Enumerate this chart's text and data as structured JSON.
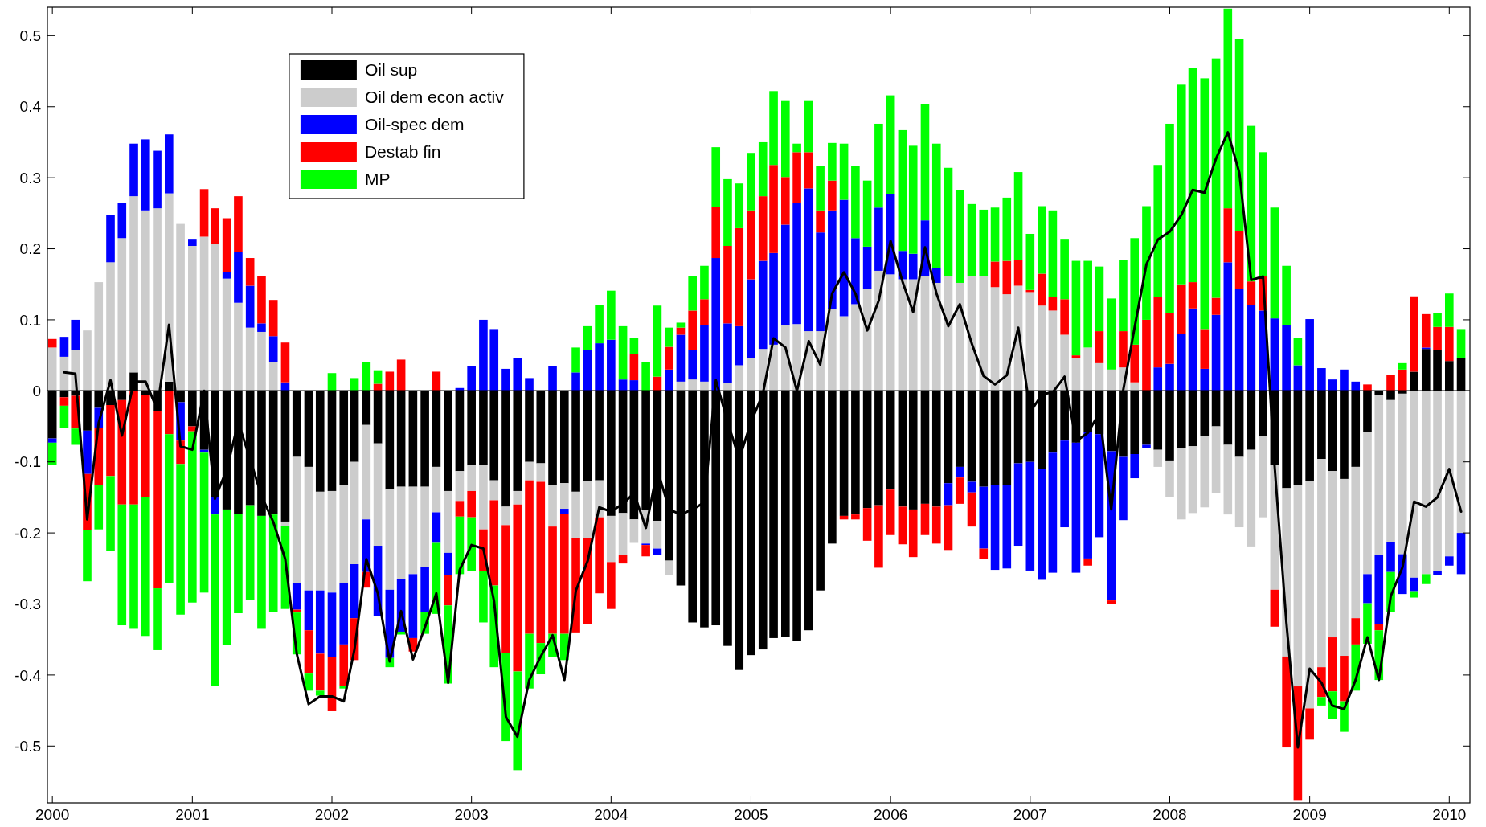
{
  "chart_data": {
    "type": "bar",
    "stacked": true,
    "x": [
      "2000-01",
      "2000-02",
      "2000-03",
      "2000-04",
      "2000-05",
      "2000-06",
      "2000-07",
      "2000-08",
      "2000-09",
      "2000-10",
      "2000-11",
      "2000-12",
      "2001-01",
      "2001-02",
      "2001-03",
      "2001-04",
      "2001-05",
      "2001-06",
      "2001-07",
      "2001-08",
      "2001-09",
      "2001-10",
      "2001-11",
      "2001-12",
      "2002-01",
      "2002-02",
      "2002-03",
      "2002-04",
      "2002-05",
      "2002-06",
      "2002-07",
      "2002-08",
      "2002-09",
      "2002-10",
      "2002-11",
      "2002-12",
      "2003-01",
      "2003-02",
      "2003-03",
      "2003-04",
      "2003-05",
      "2003-06",
      "2003-07",
      "2003-08",
      "2003-09",
      "2003-10",
      "2003-11",
      "2003-12",
      "2004-01",
      "2004-02",
      "2004-03",
      "2004-04",
      "2004-05",
      "2004-06",
      "2004-07",
      "2004-08",
      "2004-09",
      "2004-10",
      "2004-11",
      "2004-12",
      "2005-01",
      "2005-02",
      "2005-03",
      "2005-04",
      "2005-05",
      "2005-06",
      "2005-07",
      "2005-08",
      "2005-09",
      "2005-10",
      "2005-11",
      "2005-12",
      "2006-01",
      "2006-02",
      "2006-03",
      "2006-04",
      "2006-05",
      "2006-06",
      "2006-07",
      "2006-08",
      "2006-09",
      "2006-10",
      "2006-11",
      "2006-12",
      "2007-01",
      "2007-02",
      "2007-03",
      "2007-04",
      "2007-05",
      "2007-06",
      "2007-07",
      "2007-08",
      "2007-09",
      "2007-10",
      "2007-11",
      "2007-12",
      "2008-01",
      "2008-02",
      "2008-03",
      "2008-04",
      "2008-05",
      "2008-06",
      "2008-07",
      "2008-08",
      "2008-09",
      "2008-10",
      "2008-11",
      "2008-12",
      "2009-01",
      "2009-02",
      "2009-03",
      "2009-04",
      "2009-05",
      "2009-06",
      "2009-07",
      "2009-08",
      "2009-09",
      "2009-10",
      "2009-11",
      "2009-12",
      "2010-01",
      "2010-02"
    ],
    "xlim": [
      "1999-12-19",
      "2010-02-24"
    ],
    "xticks": [
      "2000",
      "2001",
      "2002",
      "2003",
      "2004",
      "2005",
      "2006",
      "2007",
      "2008",
      "2009",
      "2010"
    ],
    "ylim": [
      -0.58,
      0.54
    ],
    "yticks": [
      -0.5,
      -0.4,
      -0.3,
      -0.2,
      -0.1,
      0,
      0.1,
      0.2,
      0.3,
      0.4,
      0.5
    ],
    "grid": false,
    "legend": "top left",
    "ref_lines": [
      {
        "axis": "y",
        "value": 0,
        "color": "#000000"
      }
    ],
    "series": [
      {
        "name": "Oil sup",
        "color": "#000000",
        "values": [
          -0.067,
          -0.009,
          -0.007,
          -0.056,
          -0.024,
          -0.02,
          -0.013,
          0.026,
          -0.006,
          -0.028,
          0.013,
          -0.016,
          -0.05,
          -0.083,
          -0.15,
          -0.167,
          -0.173,
          -0.161,
          -0.176,
          -0.174,
          -0.184,
          -0.093,
          -0.107,
          -0.142,
          -0.141,
          -0.133,
          -0.1,
          -0.048,
          -0.074,
          -0.139,
          -0.135,
          -0.135,
          -0.135,
          -0.107,
          -0.141,
          -0.113,
          -0.105,
          -0.104,
          -0.126,
          -0.163,
          -0.141,
          -0.1,
          -0.102,
          -0.133,
          -0.13,
          -0.142,
          -0.127,
          -0.126,
          -0.176,
          -0.172,
          -0.181,
          -0.168,
          -0.183,
          -0.239,
          -0.274,
          -0.326,
          -0.333,
          -0.33,
          -0.359,
          -0.393,
          -0.372,
          -0.364,
          -0.348,
          -0.346,
          -0.352,
          -0.337,
          -0.281,
          -0.215,
          -0.176,
          -0.174,
          -0.165,
          -0.161,
          -0.139,
          -0.163,
          -0.167,
          -0.159,
          -0.163,
          -0.13,
          -0.107,
          -0.128,
          -0.135,
          -0.132,
          -0.132,
          -0.102,
          -0.1,
          -0.11,
          -0.087,
          -0.07,
          -0.073,
          -0.058,
          -0.061,
          -0.085,
          -0.093,
          -0.089,
          -0.076,
          -0.083,
          -0.098,
          -0.08,
          -0.078,
          -0.063,
          -0.05,
          -0.076,
          -0.093,
          -0.083,
          -0.063,
          -0.104,
          -0.137,
          -0.133,
          -0.127,
          -0.096,
          -0.113,
          -0.124,
          -0.107,
          -0.058,
          -0.006,
          -0.013,
          -0.004,
          0.027,
          0.059,
          0.057,
          0.042,
          0.046
        ]
      },
      {
        "name": "Oil dem econ activ",
        "color": "#cccccc",
        "values": [
          0.061,
          0.048,
          0.058,
          0.085,
          0.153,
          0.181,
          0.215,
          0.248,
          0.254,
          0.257,
          0.265,
          0.235,
          0.204,
          0.217,
          0.207,
          0.158,
          0.124,
          0.089,
          0.083,
          0.041,
          -0.006,
          -0.178,
          -0.174,
          -0.139,
          -0.143,
          -0.137,
          -0.144,
          -0.133,
          -0.144,
          -0.141,
          -0.13,
          -0.123,
          -0.113,
          -0.064,
          -0.087,
          -0.042,
          -0.036,
          -0.091,
          -0.028,
          -0.026,
          -0.019,
          -0.026,
          -0.026,
          -0.058,
          -0.036,
          -0.065,
          -0.08,
          -0.052,
          -0.065,
          -0.059,
          -0.033,
          -0.047,
          -0.039,
          -0.02,
          0.013,
          0.016,
          0.013,
          0,
          0.011,
          0.036,
          0.046,
          0.059,
          0.065,
          0.093,
          0.094,
          0.084,
          0.084,
          0.115,
          0.105,
          0.122,
          0.144,
          0.169,
          0.164,
          0.157,
          0.157,
          0.161,
          0.152,
          0.161,
          0.152,
          0.162,
          0.162,
          0.146,
          0.136,
          0.148,
          0.139,
          0.12,
          0.113,
          0.079,
          0.046,
          0.061,
          0.039,
          0.03,
          0.033,
          0.012,
          0,
          -0.024,
          -0.052,
          -0.101,
          -0.094,
          -0.101,
          -0.094,
          -0.098,
          -0.099,
          -0.136,
          -0.115,
          -0.176,
          -0.237,
          -0.283,
          -0.32,
          -0.293,
          -0.234,
          -0.249,
          -0.213,
          -0.2,
          -0.225,
          -0.2,
          -0.226,
          -0.263,
          -0.258,
          -0.254,
          -0.233,
          -0.2
        ]
      },
      {
        "name": "Oil-spec dem",
        "color": "#0000ff",
        "values": [
          -0.006,
          0.028,
          0.042,
          -0.061,
          -0.028,
          0.067,
          0.05,
          0.074,
          0.1,
          0.081,
          0.083,
          -0.054,
          0.01,
          -0.004,
          -0.024,
          0.009,
          0.072,
          0.059,
          0.012,
          0.036,
          0.012,
          -0.037,
          -0.056,
          -0.089,
          -0.091,
          -0.087,
          -0.076,
          -0.074,
          -0.099,
          -0.096,
          -0.074,
          -0.09,
          -0.063,
          -0.043,
          -0.031,
          0.004,
          0.035,
          0.1,
          0.087,
          0.031,
          0.046,
          0.018,
          0,
          0.035,
          -0.007,
          0.026,
          0.058,
          0.067,
          0.072,
          0.016,
          0.015,
          -0.002,
          -0.009,
          0.03,
          0.066,
          0.041,
          0.08,
          0.187,
          0.084,
          0.055,
          0.111,
          0.124,
          0.129,
          0.141,
          0.17,
          0.201,
          0.139,
          0.139,
          0.164,
          0.093,
          0.059,
          0.089,
          0.113,
          0.04,
          0.036,
          0.079,
          0.021,
          -0.031,
          -0.015,
          -0.015,
          -0.087,
          -0.12,
          -0.118,
          -0.116,
          -0.153,
          -0.156,
          -0.169,
          -0.122,
          -0.183,
          -0.178,
          -0.145,
          -0.21,
          -0.089,
          -0.034,
          -0.005,
          0.033,
          0.038,
          0.08,
          0.116,
          0.031,
          0.107,
          0.181,
          0.144,
          0.121,
          0.113,
          0.102,
          0.093,
          0.036,
          0.101,
          0.032,
          0.016,
          0.03,
          0.013,
          -0.041,
          -0.097,
          -0.042,
          -0.056,
          -0.019,
          0.002,
          -0.005,
          -0.013,
          -0.058
        ]
      },
      {
        "name": "Destab fin",
        "color": "#ff0000",
        "values": [
          0.012,
          -0.012,
          -0.046,
          -0.079,
          -0.08,
          -0.1,
          -0.147,
          -0.16,
          -0.144,
          -0.25,
          -0.061,
          -0.033,
          -0.007,
          0.067,
          0.05,
          0.076,
          0.078,
          0.039,
          0.067,
          0.051,
          0.056,
          -0.004,
          -0.061,
          -0.052,
          -0.076,
          -0.058,
          -0.059,
          -0.022,
          0.01,
          0.027,
          0.044,
          -0.019,
          0,
          0.027,
          -0.043,
          -0.022,
          -0.037,
          -0.059,
          -0.12,
          -0.18,
          -0.235,
          -0.216,
          -0.227,
          -0.151,
          -0.169,
          -0.133,
          -0.121,
          -0.107,
          -0.066,
          -0.012,
          0.037,
          -0.016,
          0.02,
          0.032,
          0.01,
          0.056,
          0.036,
          0.072,
          0.109,
          0.138,
          0.097,
          0.091,
          0.124,
          0.067,
          0.072,
          0.051,
          0.031,
          0.042,
          -0.005,
          -0.007,
          -0.046,
          -0.088,
          -0.064,
          -0.053,
          -0.067,
          -0.044,
          -0.052,
          -0.063,
          -0.037,
          -0.048,
          -0.015,
          0.036,
          0.047,
          0.036,
          0.003,
          0.045,
          0.019,
          0.05,
          0.004,
          -0.01,
          0.045,
          -0.005,
          0.051,
          0.053,
          0.1,
          0.099,
          0.072,
          0.07,
          0.037,
          0.056,
          0.024,
          0.076,
          0.081,
          0.033,
          0.049,
          -0.052,
          -0.128,
          -0.161,
          -0.044,
          -0.042,
          -0.076,
          -0.064,
          -0.037,
          0.009,
          -0.009,
          0.022,
          0.03,
          0.106,
          0.047,
          0.033,
          0.048,
          0
        ]
      },
      {
        "name": "MP",
        "color": "#00ff00",
        "values": [
          -0.031,
          -0.031,
          -0.023,
          -0.072,
          -0.063,
          -0.105,
          -0.17,
          -0.175,
          -0.195,
          -0.087,
          -0.209,
          -0.212,
          -0.241,
          -0.197,
          -0.241,
          -0.191,
          -0.14,
          -0.133,
          -0.159,
          -0.137,
          -0.117,
          -0.059,
          -0.024,
          -0.007,
          0.025,
          -0.004,
          0.018,
          0.041,
          0.019,
          -0.013,
          -0.004,
          null,
          -0.031,
          -0.1,
          -0.11,
          -0.081,
          -0.076,
          -0.072,
          -0.115,
          -0.124,
          -0.139,
          -0.077,
          -0.044,
          -0.033,
          -0.037,
          0.035,
          0.033,
          0.054,
          0.069,
          0.075,
          0.022,
          0.04,
          0.1,
          0.027,
          0.007,
          0.048,
          0.047,
          0.084,
          0.094,
          0.063,
          0.081,
          0.076,
          0.104,
          0.107,
          0.012,
          0.072,
          0.063,
          0.053,
          0.079,
          0.101,
          0.093,
          0.118,
          0.139,
          0.17,
          0.152,
          0.164,
          0.175,
          0.153,
          0.131,
          0.101,
          0.093,
          0.076,
          0.089,
          0.124,
          0.079,
          0.095,
          0.122,
          0.085,
          0.133,
          0.122,
          0.091,
          0.1,
          0.1,
          0.15,
          0.16,
          0.186,
          0.266,
          0.281,
          0.302,
          0.353,
          0.337,
          0.281,
          0.27,
          0.219,
          0.174,
          0.156,
          0.083,
          0.039,
          0,
          -0.012,
          -0.039,
          -0.043,
          -0.065,
          -0.057,
          -0.07,
          -0.056,
          0.009,
          -0.009,
          -0.014,
          0.019,
          0.047,
          0.041
        ]
      },
      {
        "type": "line",
        "color": "#000000",
        "values": [
          null,
          0.026,
          0.024,
          -0.181,
          -0.045,
          0.015,
          -0.063,
          0.013,
          0.013,
          -0.026,
          0.093,
          -0.078,
          -0.083,
          0,
          -0.152,
          -0.111,
          -0.044,
          -0.096,
          -0.148,
          -0.185,
          -0.237,
          -0.37,
          -0.441,
          -0.43,
          -0.43,
          -0.437,
          -0.364,
          -0.237,
          -0.285,
          -0.381,
          -0.31,
          -0.378,
          -0.333,
          -0.285,
          -0.411,
          -0.252,
          -0.217,
          -0.222,
          -0.296,
          -0.459,
          -0.487,
          -0.407,
          -0.374,
          -0.344,
          -0.407,
          -0.281,
          -0.239,
          -0.164,
          -0.17,
          -0.159,
          -0.144,
          -0.193,
          -0.111,
          -0.167,
          -0.174,
          -0.167,
          -0.157,
          0.015,
          -0.044,
          -0.096,
          -0.044,
          -0.004,
          0.074,
          0.061,
          0,
          0.07,
          0.037,
          0.137,
          0.167,
          0.137,
          0.085,
          0.127,
          0.211,
          0.154,
          0.111,
          0.202,
          0.137,
          0.091,
          0.122,
          0.067,
          0.021,
          0.009,
          0.022,
          0.089,
          -0.03,
          -0.005,
          -0.002,
          0.02,
          -0.071,
          -0.059,
          -0.031,
          -0.167,
          0,
          0.089,
          0.178,
          0.213,
          0.224,
          0.248,
          0.283,
          0.279,
          0.327,
          0.364,
          0.307,
          0.156,
          0.161,
          -0.104,
          -0.326,
          -0.502,
          -0.391,
          -0.411,
          -0.443,
          -0.448,
          -0.407,
          -0.347,
          -0.407,
          -0.289,
          -0.248,
          -0.156,
          -0.163,
          -0.15,
          -0.11,
          -0.17
        ]
      }
    ]
  }
}
